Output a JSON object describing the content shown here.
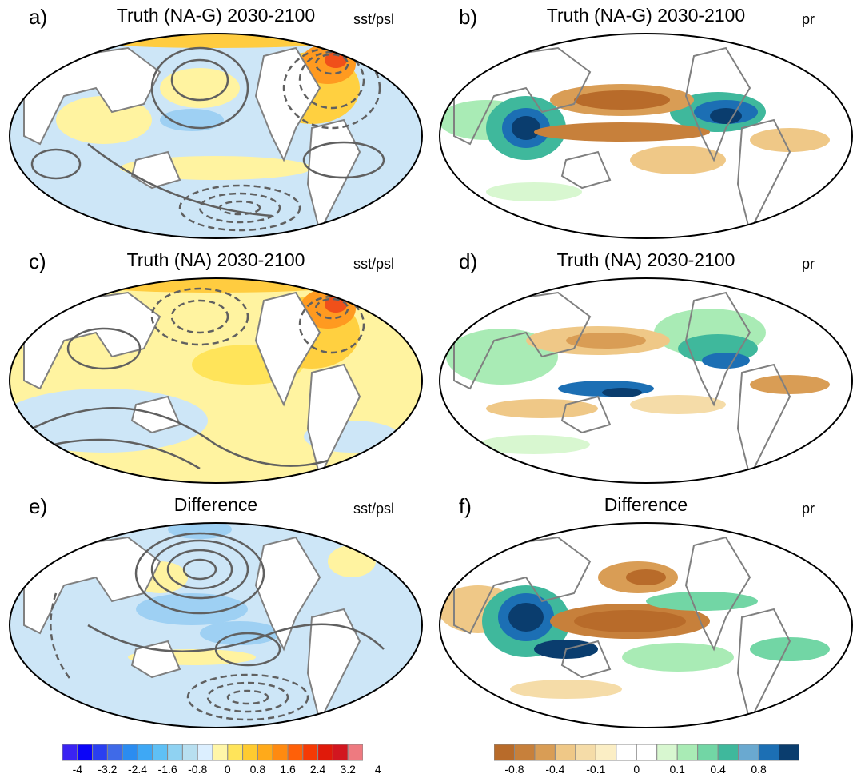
{
  "panels": [
    {
      "id": "a",
      "letter": "a)",
      "title": "Truth (NA-G) 2030-2100",
      "var": "sst/psl"
    },
    {
      "id": "b",
      "letter": "b)",
      "title": "Truth (NA-G) 2030-2100",
      "var": "pr"
    },
    {
      "id": "c",
      "letter": "c)",
      "title": "Truth (NA) 2030-2100",
      "var": "sst/psl"
    },
    {
      "id": "d",
      "letter": "d)",
      "title": "Truth (NA) 2030-2100",
      "var": "pr"
    },
    {
      "id": "e",
      "letter": "e)",
      "title": "Difference",
      "var": "sst/psl"
    },
    {
      "id": "f",
      "letter": "f)",
      "title": "Difference",
      "var": "pr"
    }
  ],
  "colorbars": {
    "sst": {
      "colors": [
        "#3a23f2",
        "#0b05f8",
        "#2a3ff0",
        "#3f6ae8",
        "#2b8cf0",
        "#3ea8f5",
        "#5fc0f5",
        "#8fd2f2",
        "#b8dff0",
        "#dcefff",
        "#fff6a8",
        "#ffe45a",
        "#ffcb30",
        "#ffaa1a",
        "#ff8a10",
        "#ff6008",
        "#f53a05",
        "#e01a0a",
        "#d2161f",
        "#ee7a80"
      ],
      "labels": [
        "-4",
        "-3.2",
        "-2.4",
        "-1.6",
        "-0.8",
        "0",
        "0.8",
        "1.6",
        "2.4",
        "3.2",
        "4"
      ]
    },
    "pr": {
      "colors": [
        "#b86b2a",
        "#c7803b",
        "#d99d55",
        "#efc887",
        "#f5dca8",
        "#fbeec5",
        "#ffffff",
        "#ffffff",
        "#d8f7d0",
        "#a9ebb5",
        "#72d6a5",
        "#3fb89c",
        "#6aa9d0",
        "#1c6fb4",
        "#0a3d6e"
      ],
      "labels": [
        "-0.8",
        "-0.4",
        "-0.1",
        "0",
        "0.1",
        "0.4",
        "0.8"
      ]
    }
  },
  "colors": {
    "coast": "#808080",
    "contour": "#606060",
    "border": "#000000"
  }
}
